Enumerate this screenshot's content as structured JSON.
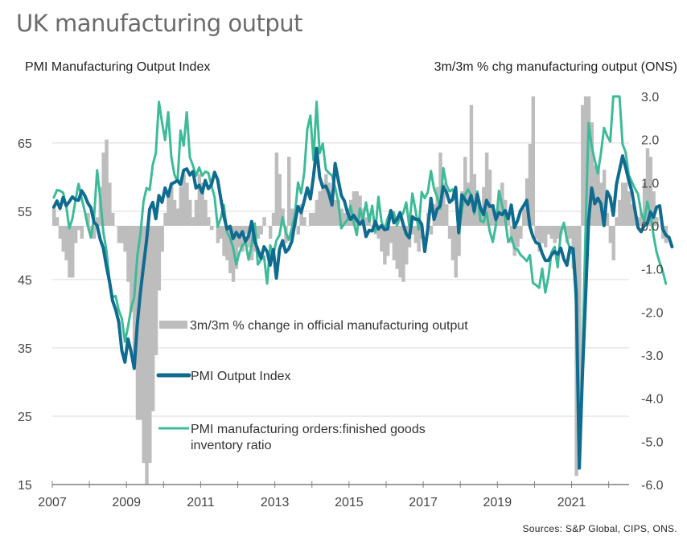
{
  "title": "UK manufacturing output",
  "axis_title_left": "PMI Manufacturing Output Index",
  "axis_title_right": "3m/3m % chg manufacturing output (ONS)",
  "source": "Sources: S&P Global, CIPS, ONS.",
  "colors": {
    "bars": "#bdbdbd",
    "pmi_output": "#0f6b8f",
    "orders_inventory": "#3dbb98",
    "grid": "#d9d9d9",
    "axis": "#7f7f7f"
  },
  "chart_data": {
    "type": "bar+line",
    "title": "UK manufacturing output",
    "y_left": {
      "label": "PMI Manufacturing Output Index",
      "range": [
        15,
        71.8
      ],
      "ticks": [
        15,
        25,
        35,
        45,
        55,
        65
      ]
    },
    "y_right": {
      "label": "3m/3m % chg manufacturing output (ONS)",
      "range": [
        -6.0,
        3.0
      ],
      "ticks": [
        "3.0",
        "2.0",
        "1.0",
        "0.0",
        "-1.0",
        "-2.0",
        "-3.0",
        "-4.0",
        "-5.0",
        "-6.0"
      ]
    },
    "x": {
      "range": [
        2007.0,
        2022.55
      ],
      "ticks": [
        "2007",
        "2009",
        "2011",
        "2013",
        "2015",
        "2017",
        "2019",
        "2021"
      ],
      "tick_values": [
        2007,
        2009,
        2011,
        2013,
        2015,
        2017,
        2019,
        2021
      ]
    },
    "grid": "horizontal",
    "legend": {
      "placement": "center-left inside plot",
      "entries": [
        {
          "label": "3m/3m % change in official manufacturing output",
          "type": "bar"
        },
        {
          "label": "PMI Output Index",
          "type": "line"
        },
        {
          "label": "PMI manufacturing orders:finished goods inventory ratio",
          "label_lines": [
            "PMI manufacturing orders:finished goods",
            "inventory ratio"
          ],
          "type": "line"
        }
      ]
    },
    "series": [
      {
        "name": "3m/3m % change in official manufacturing output",
        "axis": "right",
        "type": "bar",
        "start": 2007.0,
        "step_months": 1,
        "values": [
          0.4,
          0.2,
          -0.3,
          -0.6,
          -0.8,
          -1.2,
          -1.2,
          -0.4,
          -0.1,
          -0.3,
          0.0,
          0.3,
          -0.3,
          -0.3,
          0.2,
          0.9,
          1.7,
          2.0,
          1.0,
          0.3,
          0.0,
          -0.4,
          -0.4,
          -0.6,
          -1.3,
          -2.0,
          -3.0,
          -4.5,
          -4.5,
          -5.5,
          -6.0,
          -5.5,
          -4.3,
          -3.0,
          -1.5,
          -0.6,
          0.3,
          0.8,
          1.0,
          0.6,
          0.4,
          0.9,
          1.2,
          1.0,
          0.6,
          0.2,
          0.6,
          1.2,
          1.0,
          0.6,
          0.2,
          -0.1,
          0.0,
          -0.4,
          -0.3,
          -0.7,
          -0.8,
          -1.1,
          -1.3,
          -1.0,
          -0.5,
          -0.6,
          -0.2,
          -0.5,
          -0.8,
          -0.6,
          -0.3,
          -0.2,
          0.2,
          0.0,
          -0.3,
          0.3,
          1.7,
          1.2,
          0.4,
          -0.4,
          1.6,
          0.4,
          0.1,
          -0.2,
          0.5,
          0.2,
          0.0,
          0.3,
          0.3,
          0.6,
          0.8,
          1.0,
          1.2,
          1.0,
          0.8,
          0.6,
          0.6,
          0.4,
          0.3,
          0.4,
          0.6,
          0.8,
          0.8,
          0.7,
          0.4,
          0.2,
          0.3,
          0.0,
          -0.2,
          -0.3,
          -0.6,
          -0.9,
          -0.7,
          -0.4,
          -0.8,
          -1.0,
          -1.2,
          -1.3,
          -0.9,
          -0.5,
          -0.2,
          -0.4,
          -0.6,
          -0.3,
          0.0,
          0.3,
          -0.2,
          0.5,
          0.9,
          1.7,
          1.0,
          0.5,
          -0.3,
          -0.8,
          -1.2,
          -0.7,
          0.8,
          1.6,
          1.0,
          2.8,
          1.2,
          0.6,
          0.3,
          0.9,
          1.7,
          1.3,
          0.5,
          0.3,
          0.7,
          1.0,
          0.6,
          0.2,
          -0.4,
          -0.7,
          -0.5,
          -0.3,
          0.4,
          1.1,
          1.9,
          3.0,
          -0.3,
          -0.6,
          -0.4,
          -0.5,
          -0.2,
          -0.3,
          -0.4,
          -0.3,
          -0.2,
          -0.1,
          -0.4,
          -0.3,
          -1.0,
          -5.8,
          -4.4,
          2.8,
          3.0,
          3.0,
          2.4,
          1.4,
          1.4,
          1.0,
          1.3,
          0.3,
          -0.4,
          -0.8,
          0.2,
          0.6,
          1.0,
          1.0,
          0.8,
          0.5,
          0.3,
          0.2,
          0.3,
          1.0,
          1.8,
          1.6,
          0.8,
          0.2,
          0.0,
          -0.3,
          -0.4
        ]
      },
      {
        "name": "PMI Output Index",
        "axis": "left",
        "type": "line",
        "start": 2007.0,
        "step_months": 1,
        "values": [
          55.6,
          56.5,
          55.4,
          57.0,
          55.8,
          56.4,
          57.1,
          56.7,
          56.6,
          58.0,
          57.3,
          56.2,
          55.5,
          53.4,
          52.9,
          50.9,
          49.6,
          47.0,
          44.7,
          41.9,
          40.6,
          38.8,
          34.6,
          32.9,
          36.3,
          34.4,
          32.0,
          38.5,
          43.1,
          47.0,
          50.7,
          55.3,
          56.3,
          53.9,
          57.3,
          56.3,
          58.4,
          57.2,
          59.0,
          59.2,
          59.5,
          58.9,
          61.0,
          61.2,
          60.3,
          60.8,
          58.4,
          58.8,
          57.7,
          59.5,
          58.3,
          58.9,
          60.7,
          59.6,
          56.9,
          54.3,
          52.4,
          52.8,
          51.0,
          51.9,
          51.2,
          52.0,
          50.6,
          51.4,
          53.5,
          50.6,
          49.4,
          48.1,
          49.8,
          49.1,
          47.1,
          49.4,
          45.2,
          49.4,
          50.7,
          49.0,
          49.5,
          50.6,
          53.3,
          55.7,
          54.8,
          56.5,
          58.4,
          56.8,
          60.1,
          64.2,
          60.0,
          58.5,
          58.7,
          57.6,
          55.9,
          62.0,
          59.6,
          57.3,
          56.5,
          54.8,
          53.8,
          54.4,
          53.7,
          53.1,
          53.6,
          51.3,
          52.2,
          52.1,
          53.5,
          52.4,
          52.9,
          52.3,
          52.4,
          55.1,
          53.3,
          53.8,
          54.8,
          53.1,
          51.7,
          51.1,
          54.2,
          53.8,
          53.8,
          53.1,
          49.1,
          52.5,
          56.9,
          53.8,
          55.3,
          55.8,
          58.6,
          57.8,
          56.3,
          56.7,
          58.5,
          51.9,
          57.4,
          56.7,
          56.0,
          57.3,
          55.0,
          57.5,
          55.5,
          54.5,
          56.6,
          55.7,
          55.8,
          53.8,
          54.8,
          54.5,
          55.1,
          53.9,
          55.9,
          52.6,
          53.6,
          55.1,
          55.8,
          56.6,
          52.8,
          51.3,
          50.4,
          50.2,
          48.8,
          47.8,
          47.8,
          48.6,
          49.1,
          48.7,
          49.6,
          48.0,
          47.1,
          49.7,
          49.5,
          43.1,
          17.4,
          31.0,
          42.0,
          53.6,
          58.4,
          56.1,
          56.9,
          56.1,
          52.9,
          57.9,
          57.0,
          54.4,
          58.9,
          61.0,
          63.1,
          61.4,
          59.5,
          57.9,
          55.2,
          52.6,
          52.0,
          52.9,
          53.2,
          54.9,
          54.1,
          55.6,
          55.8,
          52.4,
          51.5,
          51.2,
          49.8
        ]
      },
      {
        "name": "PMI manufacturing orders:finished goods inventory ratio",
        "axis": "left",
        "type": "line",
        "start": 2007.0,
        "step_months": 1,
        "values": [
          57.0,
          58.1,
          58.0,
          57.7,
          55.8,
          52.5,
          53.9,
          56.6,
          59.0,
          56.9,
          55.0,
          52.8,
          51.2,
          54.0,
          61.0,
          57.0,
          52.0,
          49.3,
          45.0,
          42.4,
          42.6,
          40.5,
          39.3,
          35.9,
          38.1,
          40.8,
          42.4,
          48.4,
          51.6,
          56.4,
          58.4,
          58.1,
          61.8,
          63.5,
          71.0,
          68.0,
          65.4,
          69.5,
          63.0,
          60.4,
          59.3,
          66.8,
          64.6,
          69.5,
          62.9,
          61.7,
          60.2,
          61.4,
          60.2,
          60.8,
          60.6,
          58.7,
          57.1,
          52.7,
          54.0,
          55.9,
          52.0,
          51.1,
          49.7,
          47.2,
          48.9,
          50.0,
          50.5,
          47.9,
          50.1,
          53.2,
          47.2,
          47.9,
          48.4,
          44.4,
          50.0,
          48.6,
          50.7,
          51.5,
          54.1,
          52.0,
          50.8,
          52.5,
          54.5,
          59.2,
          57.6,
          60.6,
          67.0,
          69.0,
          62.5,
          71.0,
          63.5,
          64.9,
          61.1,
          60.6,
          60.2,
          58.5,
          56.4,
          52.5,
          53.2,
          53.7,
          55.8,
          53.4,
          51.5,
          55.4,
          53.8,
          56.3,
          53.5,
          55.8,
          52.0,
          57.1,
          53.5,
          52.3,
          54.0,
          55.0,
          54.8,
          52.9,
          54.1,
          54.7,
          56.3,
          52.8,
          57.6,
          55.2,
          52.3,
          57.8,
          56.9,
          57.8,
          60.9,
          58.3,
          57.1,
          55.4,
          61.3,
          58.9,
          57.9,
          58.2,
          56.8,
          51.7,
          55.1,
          57.4,
          58.2,
          57.4,
          54.6,
          57.9,
          53.6,
          53.4,
          54.8,
          52.1,
          50.5,
          52.9,
          58.0,
          55.9,
          54.0,
          50.5,
          51.2,
          49.6,
          49.4,
          48.6,
          48.2,
          47.7,
          48.6,
          44.5,
          44.2,
          43.8,
          46.6,
          43.1,
          45.4,
          49.0,
          49.8,
          46.8,
          51.9,
          53.3,
          50.8,
          49.6,
          48.5,
          40.9,
          18.5,
          33.5,
          51.9,
          67.9,
          64.5,
          62.5,
          60.5,
          63.5,
          67.2,
          66.0,
          65.2,
          71.8,
          72.5,
          74.0,
          64.8,
          63.6,
          60.3,
          59.3,
          58.3,
          57.5,
          54.8,
          53.5,
          56.4,
          54.5,
          51.5,
          49.0,
          47.5,
          46.2,
          44.4
        ]
      }
    ]
  }
}
